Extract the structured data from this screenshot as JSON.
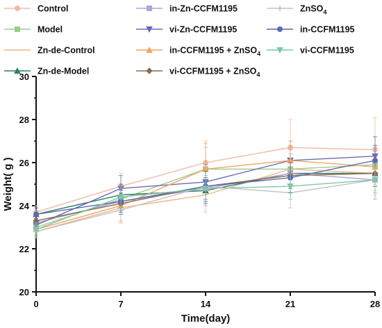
{
  "chart_data": {
    "type": "line",
    "title": "",
    "xlabel": "Time(day)",
    "ylabel": "Weight( g )",
    "x": [
      0,
      7,
      14,
      21,
      28
    ],
    "xlim": [
      0,
      28
    ],
    "ylim": [
      20,
      30
    ],
    "xticks": [
      "0",
      "7",
      "14",
      "21",
      "28"
    ],
    "yticks": [
      "20",
      "22",
      "24",
      "26",
      "28",
      "30"
    ],
    "grid": false,
    "legend_position": "top",
    "series": [
      {
        "name": "Control",
        "color": "#f2b8a8",
        "marker": "circle",
        "values": [
          23.7,
          24.9,
          26.0,
          26.7,
          26.6
        ],
        "err": [
          0.3,
          0.6,
          1.0,
          1.3,
          1.5
        ]
      },
      {
        "name": "Model",
        "color": "#9ccc8c",
        "marker": "square",
        "values": [
          23.0,
          24.3,
          25.7,
          25.7,
          25.9
        ],
        "err": [
          0.3,
          0.6,
          1.0,
          0.9,
          0.9
        ]
      },
      {
        "name": "Zn-de-Control",
        "color": "#f0b68a",
        "marker": "none",
        "values": [
          22.8,
          23.9,
          24.5,
          25.7,
          25.5
        ],
        "err": [
          0.3,
          0.6,
          0.8,
          0.9,
          0.8
        ]
      },
      {
        "name": "Zn-de-Model",
        "color": "#2f7d5e",
        "marker": "triangle-up",
        "values": [
          23.6,
          24.5,
          24.7,
          25.5,
          25.5
        ],
        "err": [
          0.3,
          0.5,
          0.6,
          0.6,
          0.6
        ]
      },
      {
        "name": "in-Zn-CCFM1195",
        "color": "#b0a2d8",
        "marker": "square",
        "values": [
          23.2,
          24.2,
          24.8,
          25.5,
          25.2
        ],
        "err": [
          0.3,
          0.6,
          0.8,
          0.9,
          0.9
        ]
      },
      {
        "name": "vi-Zn-CCFM1195",
        "color": "#6a6ab8",
        "marker": "triangle-down",
        "values": [
          23.1,
          24.8,
          25.1,
          26.1,
          26.3
        ],
        "err": [
          0.3,
          0.6,
          0.8,
          0.9,
          0.9
        ]
      },
      {
        "name": "in-CCFM1195 + ZnSO4",
        "color": "#f4a460",
        "marker": "triangle-up",
        "values": [
          22.9,
          24.0,
          25.7,
          26.1,
          25.8
        ],
        "err": [
          0.3,
          0.8,
          1.2,
          0.9,
          0.9
        ]
      },
      {
        "name": "vi-CCFM1195 + ZnSO4",
        "color": "#8c6a4a",
        "marker": "diamond",
        "values": [
          23.3,
          24.1,
          24.9,
          25.4,
          25.5
        ],
        "err": [
          0.3,
          0.5,
          0.7,
          0.6,
          0.6
        ]
      },
      {
        "name": "ZnSO4",
        "color": "#c0c0c0",
        "marker": "plus",
        "values": [
          22.8,
          23.8,
          24.9,
          24.6,
          25.2
        ],
        "err": [
          0.3,
          0.5,
          0.7,
          0.7,
          0.7
        ]
      },
      {
        "name": "in-CCFM1195",
        "color": "#5a6ab0",
        "marker": "circle",
        "values": [
          23.6,
          24.2,
          24.9,
          25.3,
          26.1
        ],
        "err": [
          0.3,
          0.5,
          0.7,
          0.7,
          0.7
        ]
      },
      {
        "name": "vi-CCFM1195",
        "color": "#7cc8a8",
        "marker": "triangle-down",
        "values": [
          22.9,
          24.4,
          24.8,
          24.9,
          25.2
        ],
        "err": [
          0.3,
          0.5,
          0.6,
          0.6,
          0.6
        ]
      }
    ],
    "legend": [
      {
        "label": "Control",
        "sub": "",
        "series": 0
      },
      {
        "label": "in-Zn-CCFM1195",
        "sub": "",
        "series": 4
      },
      {
        "label": "ZnSO",
        "sub": "4",
        "series": 8
      },
      {
        "label": "Model",
        "sub": "",
        "series": 1
      },
      {
        "label": "vi-Zn-CCFM1195",
        "sub": "",
        "series": 5
      },
      {
        "label": "in-CCFM1195",
        "sub": "",
        "series": 9
      },
      {
        "label": "Zn-de-Control",
        "sub": "",
        "series": 2
      },
      {
        "label": "in-CCFM1195 + ZnSO",
        "sub": "4",
        "series": 6
      },
      {
        "label": "vi-CCFM1195",
        "sub": "",
        "series": 10
      },
      {
        "label": "Zn-de-Model",
        "sub": "",
        "series": 3
      },
      {
        "label": "vi-CCFM1195 + ZnSO",
        "sub": "4",
        "series": 7
      }
    ]
  }
}
